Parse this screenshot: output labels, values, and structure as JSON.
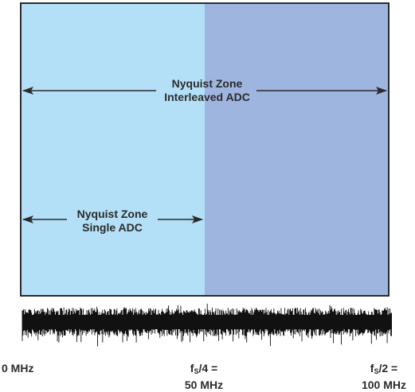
{
  "zones": {
    "interleaved": {
      "line1": "Nyquist Zone",
      "line2": "Interleaved ADC"
    },
    "single": {
      "line1": "Nyquist Zone",
      "line2": "Single ADC"
    }
  },
  "frequency_axis": {
    "zero": "0 MHz",
    "fs4_prefix": "f",
    "fs4_sub": "S",
    "fs4_suffix": "/4 =",
    "fs4_value": "50 MHz",
    "fs2_prefix": "f",
    "fs2_sub": "S",
    "fs2_suffix": "/2 =",
    "fs2_value": "100 MHz"
  },
  "colors": {
    "single_zone_fill": "#b3e0f7",
    "interleaved_zone_fill": "#9eb5df",
    "border": "#2b2b2b",
    "noise": "#111111"
  }
}
